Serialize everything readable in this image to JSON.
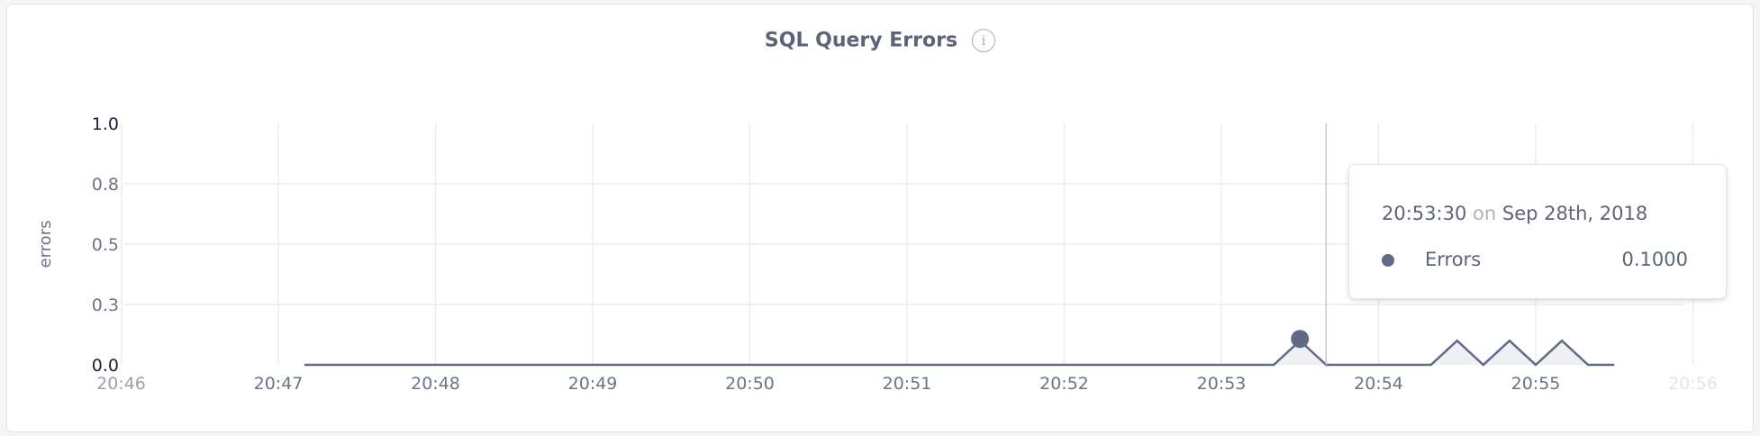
{
  "chart_data": {
    "type": "area",
    "title": "SQL Query Errors",
    "ylabel": "errors",
    "xlabel": "",
    "ylim": [
      0,
      1.0
    ],
    "xlim": [
      "20:46",
      "20:56"
    ],
    "grid": true,
    "y_ticks": [
      {
        "value": 0.0,
        "label": "0.0"
      },
      {
        "value": 0.25,
        "label": "0.3"
      },
      {
        "value": 0.5,
        "label": "0.5"
      },
      {
        "value": 0.75,
        "label": "0.8"
      },
      {
        "value": 1.0,
        "label": "1.0"
      }
    ],
    "x_ticks": [
      "20:46",
      "20:47",
      "20:48",
      "20:49",
      "20:50",
      "20:51",
      "20:52",
      "20:53",
      "20:54",
      "20:55",
      "20:56"
    ],
    "series": [
      {
        "name": "Errors",
        "color": "#5f6a86",
        "points": [
          [
            "20:47:10",
            0
          ],
          [
            "20:53:20",
            0
          ],
          [
            "20:53:30",
            0.1
          ],
          [
            "20:53:40",
            0
          ],
          [
            "20:54:20",
            0
          ],
          [
            "20:54:30",
            0.1
          ],
          [
            "20:54:40",
            0
          ],
          [
            "20:54:50",
            0.1
          ],
          [
            "20:55:00",
            0
          ],
          [
            "20:55:10",
            0.1
          ],
          [
            "20:55:20",
            0
          ],
          [
            "20:55:30",
            0
          ]
        ]
      }
    ],
    "hover": {
      "time": "20:53:30",
      "value": 0.1
    }
  },
  "tooltip": {
    "time": "20:53:30",
    "on": "on",
    "date": "Sep 28th, 2018",
    "series_label": "Errors",
    "value": "0.1000"
  },
  "info_icon": "i"
}
